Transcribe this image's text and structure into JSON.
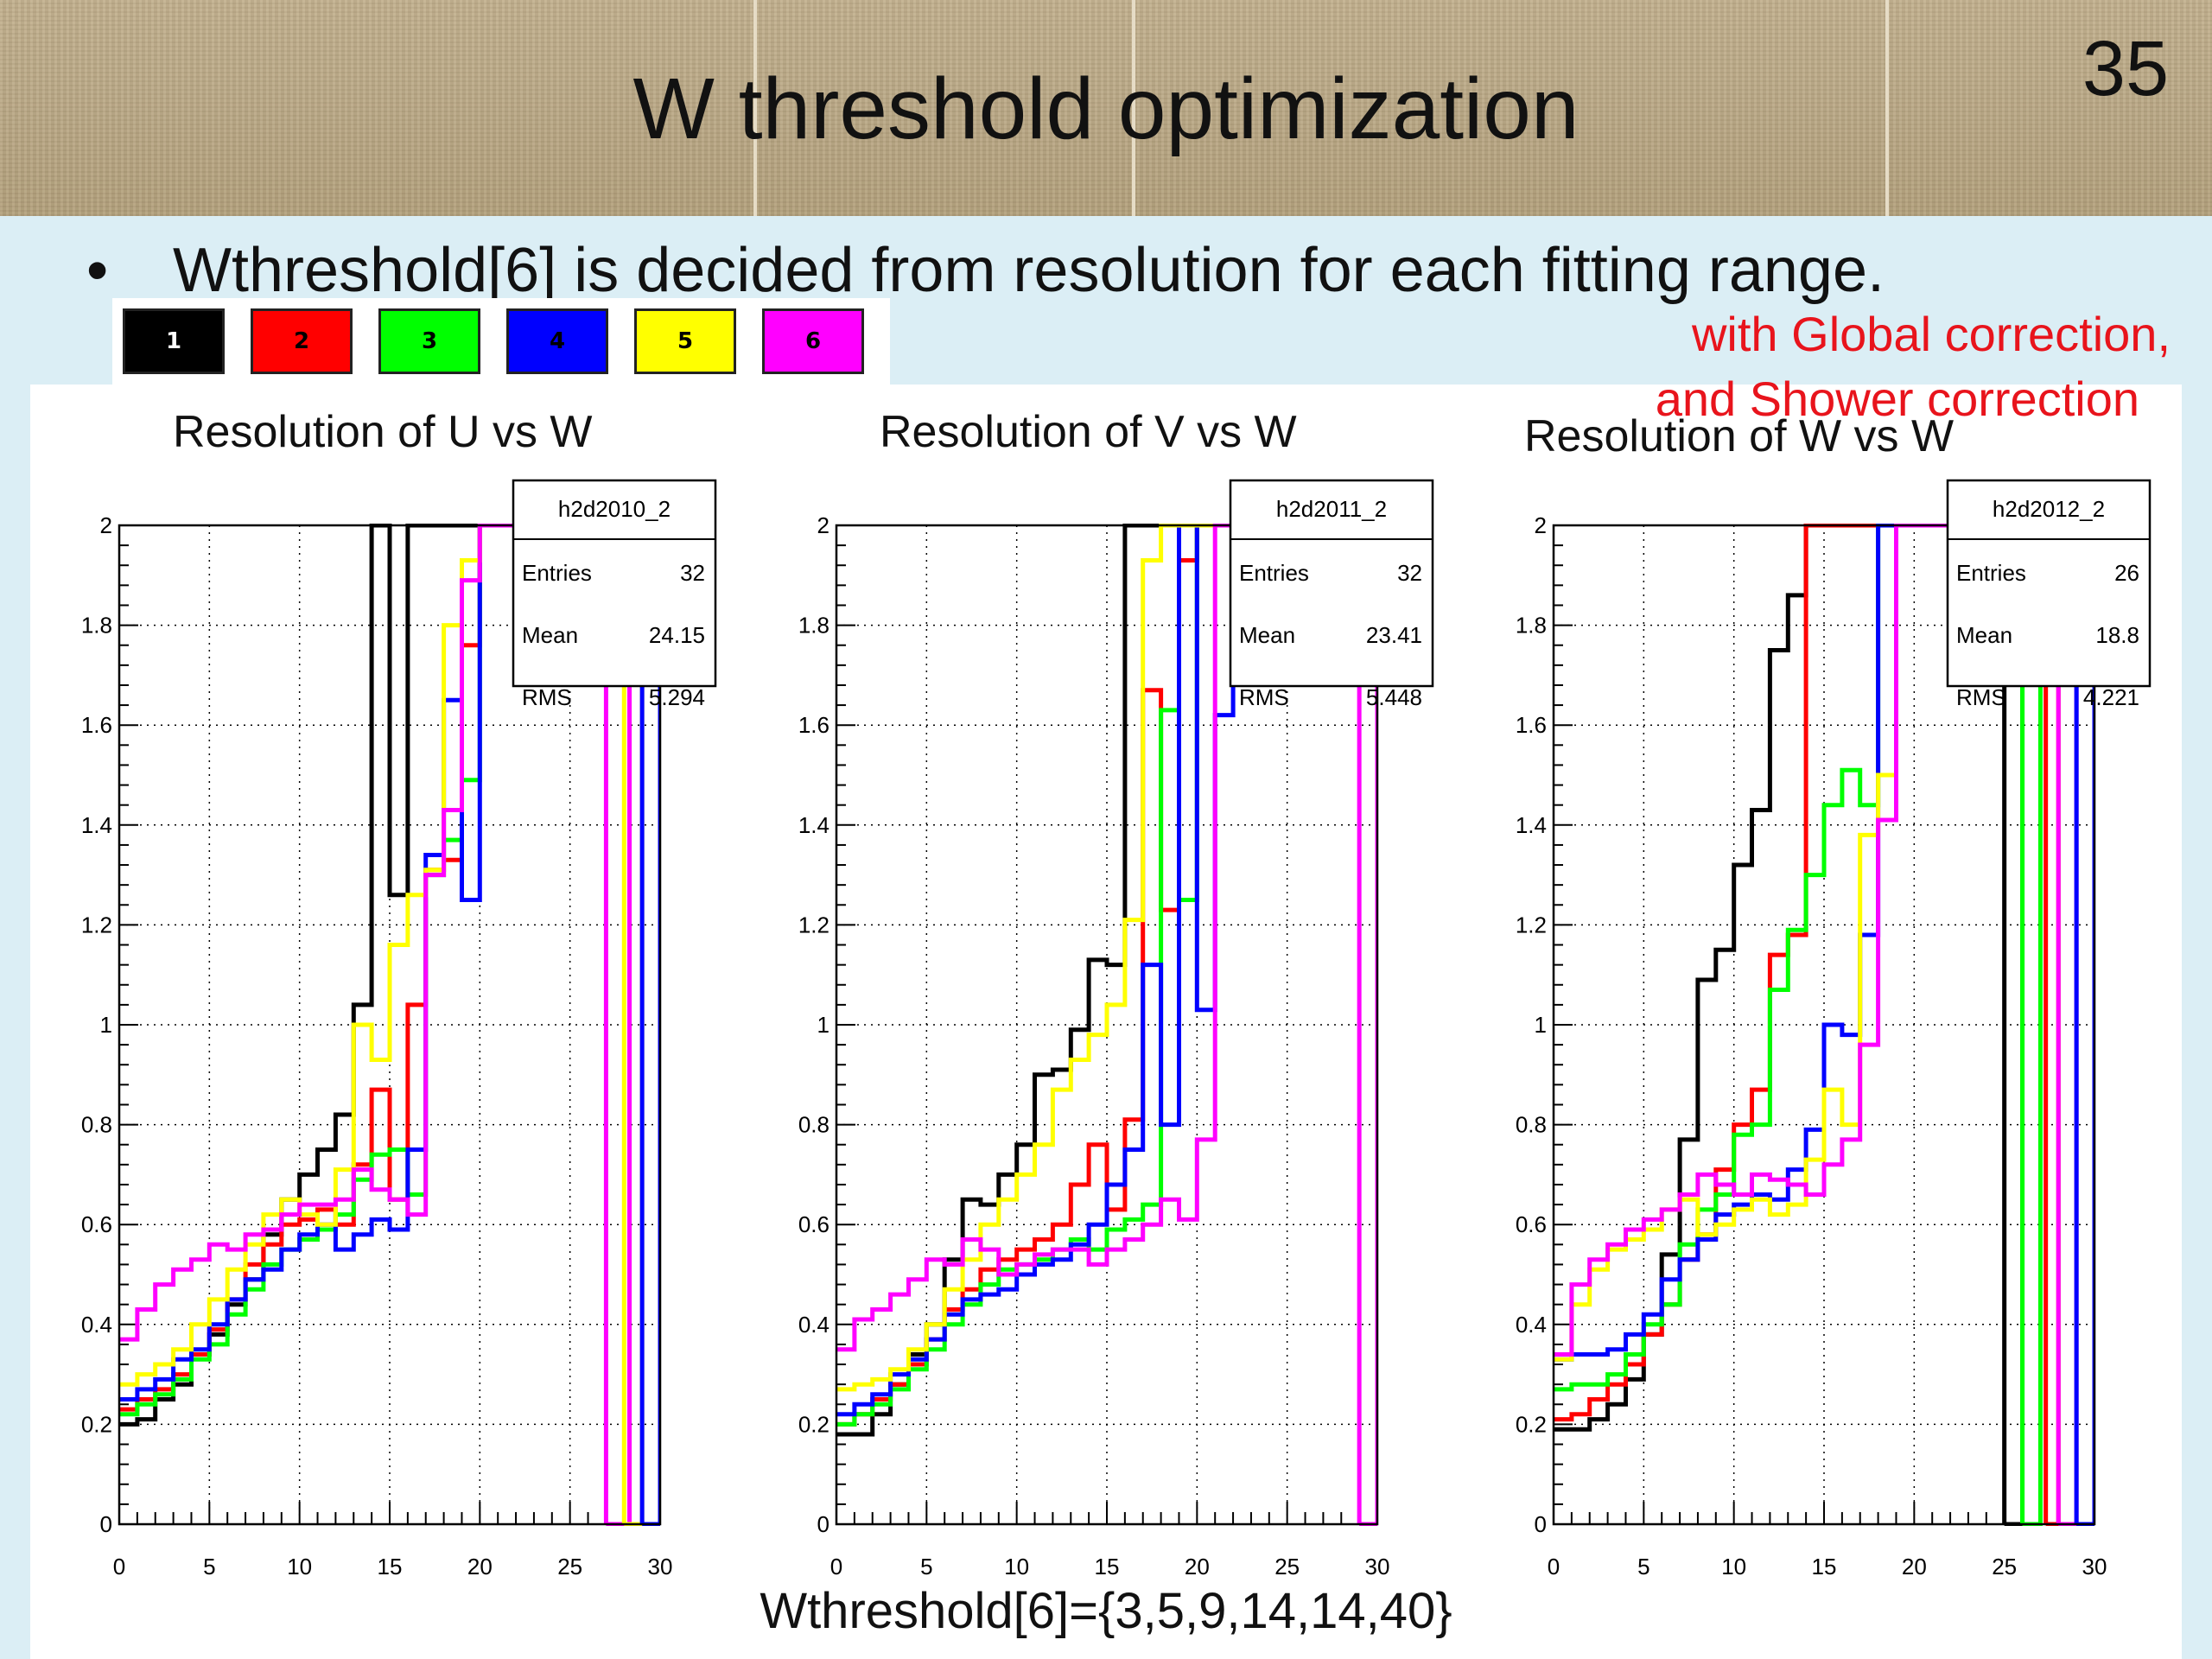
{
  "slide": {
    "title": "W threshold optimization",
    "page_number": "35",
    "bullet": "Wthreshold[6] is decided from resolution for each fitting range.",
    "note_line1": "with Global correction,",
    "note_line2": "and Shower correction",
    "caption": "Wthreshold[6]={3,5,9,14,14,40}"
  },
  "legend": [
    {
      "label": "1",
      "color": "#000000",
      "text_color": "#ffffff"
    },
    {
      "label": "2",
      "color": "#ff0000",
      "text_color": "#000000"
    },
    {
      "label": "3",
      "color": "#00ff00",
      "text_color": "#000000"
    },
    {
      "label": "4",
      "color": "#0000ff",
      "text_color": "#000000"
    },
    {
      "label": "5",
      "color": "#ffff00",
      "text_color": "#000000"
    },
    {
      "label": "6",
      "color": "#ff00ff",
      "text_color": "#000000"
    }
  ],
  "chart_data": [
    {
      "type": "line",
      "step": true,
      "title": "Resolution of U vs W",
      "xlim": [
        0,
        30
      ],
      "ylim": [
        0,
        2
      ],
      "xticks": [
        0,
        5,
        10,
        15,
        20,
        25,
        30
      ],
      "yticks": [
        0,
        0.2,
        0.4,
        0.6,
        0.8,
        1,
        1.2,
        1.4,
        1.6,
        1.8,
        2
      ],
      "ytick_labels": [
        "0",
        "0.2",
        "0.4",
        "0.6",
        "0.8",
        "1",
        "1.2",
        "1.4",
        "1.6",
        "1.8",
        "2"
      ],
      "grid": true,
      "stats": {
        "name": "h2d2010_2",
        "rows": [
          [
            "Entries",
            "32"
          ],
          [
            "Mean",
            "24.15"
          ],
          [
            "RMS",
            "5.294"
          ]
        ]
      },
      "series": [
        {
          "color": "#000000",
          "values": [
            0.2,
            0.21,
            0.25,
            0.28,
            0.34,
            0.38,
            0.44,
            0.49,
            0.58,
            0.65,
            0.7,
            0.75,
            0.82,
            1.04,
            2,
            1.26,
            2,
            2,
            2,
            2,
            2,
            2,
            2,
            2,
            2,
            2,
            2,
            2,
            2,
            2
          ]
        },
        {
          "color": "#ff0000",
          "values": [
            0.23,
            0.25,
            0.27,
            0.3,
            0.34,
            0.39,
            0.45,
            0.52,
            0.56,
            0.6,
            0.61,
            0.63,
            0.6,
            0.72,
            0.87,
            0.65,
            1.04,
            1.31,
            1.33,
            1.76,
            2,
            2,
            2,
            2,
            2,
            2,
            2,
            2,
            2,
            2
          ]
        },
        {
          "color": "#00ff00",
          "values": [
            0.22,
            0.24,
            0.26,
            0.29,
            0.33,
            0.36,
            0.42,
            0.47,
            0.52,
            0.55,
            0.57,
            0.59,
            0.62,
            0.69,
            0.74,
            0.75,
            0.66,
            1.3,
            1.37,
            1.49,
            2,
            2,
            2,
            2,
            2,
            2,
            2,
            2,
            2,
            2
          ]
        },
        {
          "color": "#0000ff",
          "values": [
            0.25,
            0.27,
            0.29,
            0.33,
            0.35,
            0.4,
            0.45,
            0.49,
            0.51,
            0.55,
            0.58,
            0.6,
            0.55,
            0.58,
            0.61,
            0.59,
            0.75,
            1.34,
            1.65,
            1.25,
            2,
            2,
            2,
            1.8,
            2,
            2,
            2,
            2,
            2,
            2
          ]
        },
        {
          "color": "#ffff00",
          "values": [
            0.28,
            0.3,
            0.32,
            0.35,
            0.4,
            0.45,
            0.51,
            0.56,
            0.62,
            0.65,
            0.62,
            0.6,
            0.71,
            1.0,
            0.93,
            1.16,
            1.26,
            1.31,
            1.8,
            1.93,
            2,
            2,
            2,
            2,
            2,
            2,
            2,
            2,
            2,
            2
          ]
        },
        {
          "color": "#ff00ff",
          "values": [
            0.37,
            0.43,
            0.48,
            0.51,
            0.53,
            0.56,
            0.55,
            0.58,
            0.59,
            0.62,
            0.64,
            0.64,
            0.65,
            0.71,
            0.67,
            0.65,
            0.62,
            1.3,
            1.43,
            1.89,
            2,
            2,
            2,
            2,
            2,
            2,
            2,
            2,
            2,
            2
          ]
        }
      ],
      "spikes": [
        {
          "color": "#ff00ff",
          "x": [
            27,
            28.3
          ]
        },
        {
          "color": "#ffff00",
          "x": [
            28,
            29
          ]
        },
        {
          "color": "#0000ff",
          "x": [
            29,
            30
          ]
        }
      ]
    },
    {
      "type": "line",
      "step": true,
      "title": "Resolution of V vs W",
      "xlim": [
        0,
        30
      ],
      "ylim": [
        0,
        2
      ],
      "xticks": [
        0,
        5,
        10,
        15,
        20,
        25,
        30
      ],
      "yticks": [
        0,
        0.2,
        0.4,
        0.6,
        0.8,
        1,
        1.2,
        1.4,
        1.6,
        1.8,
        2
      ],
      "ytick_labels": [
        "0",
        "0.2",
        "0.4",
        "0.6",
        "0.8",
        "1",
        "1.2",
        "1.4",
        "1.6",
        "1.8",
        "2"
      ],
      "grid": true,
      "stats": {
        "name": "h2d2011_2",
        "rows": [
          [
            "Entries",
            "32"
          ],
          [
            "Mean",
            "23.41"
          ],
          [
            "RMS",
            "5.448"
          ]
        ]
      },
      "series": [
        {
          "color": "#000000",
          "values": [
            0.18,
            0.18,
            0.22,
            0.28,
            0.34,
            0.4,
            0.53,
            0.65,
            0.64,
            0.7,
            0.76,
            0.9,
            0.91,
            0.99,
            1.13,
            1.12,
            2,
            2,
            2,
            2,
            2,
            2,
            2,
            2,
            2,
            2,
            2,
            2,
            2,
            2
          ]
        },
        {
          "color": "#ff0000",
          "values": [
            0.2,
            0.22,
            0.25,
            0.28,
            0.32,
            0.37,
            0.43,
            0.47,
            0.51,
            0.53,
            0.55,
            0.57,
            0.6,
            0.68,
            0.76,
            0.63,
            0.81,
            1.67,
            1.23,
            1.93,
            2,
            2,
            2,
            2,
            2,
            2,
            2,
            2,
            2,
            2
          ]
        },
        {
          "color": "#00ff00",
          "values": [
            0.2,
            0.22,
            0.24,
            0.27,
            0.31,
            0.35,
            0.4,
            0.44,
            0.48,
            0.51,
            0.52,
            0.53,
            0.55,
            0.57,
            0.55,
            0.59,
            0.61,
            0.64,
            1.63,
            1.25,
            2,
            2,
            2,
            2,
            2,
            2,
            2,
            2,
            2,
            2
          ]
        },
        {
          "color": "#0000ff",
          "values": [
            0.22,
            0.24,
            0.26,
            0.3,
            0.33,
            0.37,
            0.42,
            0.45,
            0.46,
            0.47,
            0.5,
            0.52,
            0.53,
            0.56,
            0.6,
            0.68,
            0.75,
            1.12,
            0.8,
            2,
            1.03,
            1.62,
            2,
            1.97,
            2,
            2,
            2,
            2,
            2,
            2
          ]
        },
        {
          "color": "#ffff00",
          "values": [
            0.27,
            0.28,
            0.29,
            0.31,
            0.35,
            0.4,
            0.47,
            0.53,
            0.6,
            0.65,
            0.7,
            0.76,
            0.87,
            0.93,
            0.98,
            1.04,
            1.21,
            1.93,
            2,
            2,
            2,
            2,
            2,
            2,
            2,
            2,
            2,
            2,
            2,
            2
          ]
        },
        {
          "color": "#ff00ff",
          "values": [
            0.35,
            0.41,
            0.43,
            0.46,
            0.49,
            0.53,
            0.52,
            0.57,
            0.55,
            0.5,
            0.52,
            0.54,
            0.55,
            0.55,
            0.52,
            0.55,
            0.57,
            0.6,
            0.65,
            0.61,
            0.77,
            2,
            2,
            2,
            2,
            2,
            2,
            2,
            2,
            2
          ]
        }
      ],
      "spikes": [
        {
          "color": "#ff00ff",
          "x": [
            29,
            30
          ]
        }
      ]
    },
    {
      "type": "line",
      "step": true,
      "title": "Resolution of W vs W",
      "xlim": [
        0,
        30
      ],
      "ylim": [
        0,
        2
      ],
      "xticks": [
        0,
        5,
        10,
        15,
        20,
        25,
        30
      ],
      "yticks": [
        0,
        0.2,
        0.4,
        0.6,
        0.8,
        1,
        1.2,
        1.4,
        1.6,
        1.8,
        2
      ],
      "ytick_labels": [
        "0",
        "0.2",
        "0.4",
        "0.6",
        "0.8",
        "1",
        "1.2",
        "1.4",
        "1.6",
        "1.8",
        "2"
      ],
      "grid": true,
      "stats": {
        "name": "h2d2012_2",
        "rows": [
          [
            "Entries",
            "26"
          ],
          [
            "Mean",
            "18.8"
          ],
          [
            "RMS",
            "4.221"
          ]
        ]
      },
      "series": [
        {
          "color": "#000000",
          "values": [
            0.19,
            0.19,
            0.21,
            0.24,
            0.29,
            0.38,
            0.54,
            0.77,
            1.09,
            1.15,
            1.32,
            1.43,
            1.75,
            1.86,
            2,
            2,
            2,
            2,
            2,
            2,
            2,
            2,
            2,
            2,
            2,
            2,
            2,
            2,
            2,
            2
          ]
        },
        {
          "color": "#ff0000",
          "values": [
            0.21,
            0.22,
            0.25,
            0.28,
            0.32,
            0.38,
            0.44,
            0.53,
            0.58,
            0.71,
            0.8,
            0.87,
            1.14,
            1.18,
            2,
            2,
            2,
            2,
            2,
            2,
            2,
            2,
            2,
            2,
            2,
            2,
            2,
            2,
            2,
            2
          ]
        },
        {
          "color": "#00ff00",
          "values": [
            0.27,
            0.28,
            0.28,
            0.3,
            0.34,
            0.4,
            0.44,
            0.56,
            0.63,
            0.66,
            0.78,
            0.8,
            1.07,
            1.19,
            1.3,
            1.44,
            1.51,
            1.44,
            2,
            2,
            2,
            2,
            2,
            2,
            2,
            2,
            2,
            2,
            2,
            2
          ]
        },
        {
          "color": "#0000ff",
          "values": [
            0.33,
            0.34,
            0.34,
            0.35,
            0.38,
            0.42,
            0.49,
            0.53,
            0.57,
            0.62,
            0.64,
            0.66,
            0.65,
            0.71,
            0.79,
            1.0,
            0.98,
            1.18,
            2,
            2,
            2,
            2,
            2,
            2,
            2,
            2,
            2,
            2,
            2,
            2
          ]
        },
        {
          "color": "#ffff00",
          "values": [
            0.33,
            0.44,
            0.51,
            0.55,
            0.57,
            0.59,
            0.63,
            0.65,
            0.58,
            0.6,
            0.63,
            0.65,
            0.62,
            0.64,
            0.73,
            0.87,
            0.8,
            1.38,
            1.5,
            2,
            2,
            2,
            2,
            2,
            2,
            2,
            2,
            2,
            2,
            2
          ]
        },
        {
          "color": "#ff00ff",
          "values": [
            0.34,
            0.48,
            0.53,
            0.56,
            0.59,
            0.61,
            0.63,
            0.66,
            0.7,
            0.68,
            0.66,
            0.7,
            0.69,
            0.68,
            0.66,
            0.72,
            0.77,
            0.96,
            1.41,
            2,
            2,
            2,
            2,
            2,
            2,
            2,
            2,
            2,
            2,
            2
          ]
        }
      ],
      "spikes": [
        {
          "color": "#000000",
          "x": [
            25,
            26
          ]
        },
        {
          "color": "#00ff00",
          "x": [
            26,
            27
          ]
        },
        {
          "color": "#ff0000",
          "x": [
            27.3,
            28
          ]
        },
        {
          "color": "#ff00ff",
          "x": [
            28,
            29
          ]
        },
        {
          "color": "#0000ff",
          "x": [
            29,
            30
          ]
        }
      ]
    }
  ]
}
